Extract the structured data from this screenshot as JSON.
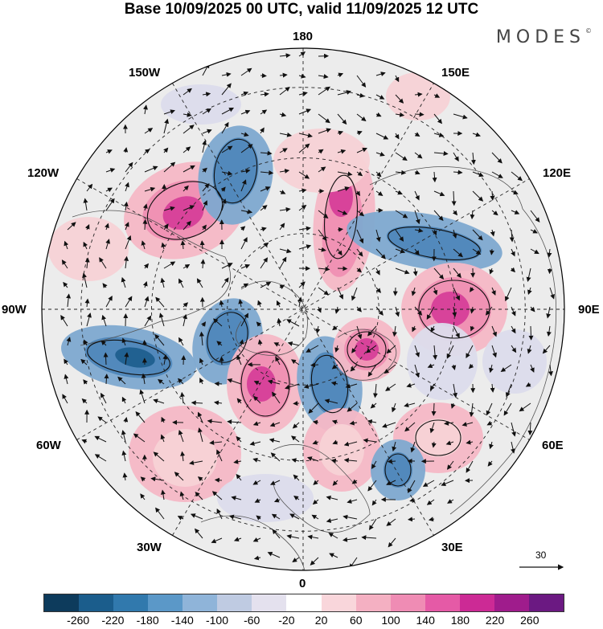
{
  "header": {
    "title": "Base 10/09/2025 00 UTC, valid 11/09/2025 12 UTC",
    "brand": "MODES",
    "brand_mark": "©"
  },
  "map": {
    "projection": "north polar stereographic",
    "longitude_labels": {
      "top": "180",
      "upper_right": "150E",
      "right_upper": "120E",
      "right": "90E",
      "right_lower": "60E",
      "lower_right": "30E",
      "bottom": "0",
      "lower_left": "30W",
      "left_lower": "60W",
      "left": "90W",
      "left_upper": "120W",
      "upper_left": "150W"
    },
    "wind_reference_vector": "30",
    "colors": {
      "strong_negative": "#1f5f8e",
      "negative": "#7ea9d0",
      "weak_negative": "#dcdcec",
      "neutral": "#e6e6e6",
      "weak_positive": "#f7d2d6",
      "positive": "#ef8fb3",
      "strong_positive": "#d63f99",
      "land_gray": "#e3e3e3",
      "coast": "#555555"
    }
  },
  "colorbar": {
    "ticks": [
      "-260",
      "-220",
      "-180",
      "-140",
      "-100",
      "-60",
      "-20",
      "20",
      "60",
      "100",
      "140",
      "180",
      "220",
      "260"
    ],
    "colors": [
      "#0d3b5c",
      "#1b5d8c",
      "#3179ad",
      "#5b98c8",
      "#8fb4d9",
      "#bfcbe2",
      "#e4e1ee",
      "#ffffff",
      "#f9d6db",
      "#f4b0c2",
      "#ef8cb4",
      "#e55aa6",
      "#cc2a95",
      "#9f1c8c",
      "#6b1982"
    ]
  }
}
